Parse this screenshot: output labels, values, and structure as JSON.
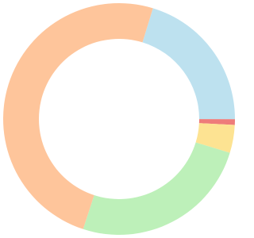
{
  "chart_data": {
    "type": "donut",
    "values": [
      20.3,
      0.8,
      3.9,
      25.3,
      49.7
    ],
    "colors": [
      "#bde1ef",
      "#ee7c7a",
      "#fde392",
      "#bdf0b9",
      "#fec59b"
    ]
  }
}
